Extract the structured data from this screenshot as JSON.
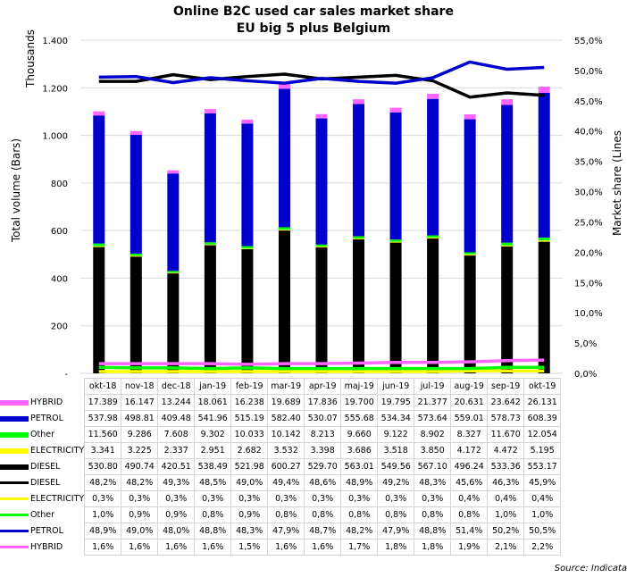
{
  "chart_data": {
    "type": "bar",
    "title": "Online B2C used car sales market share",
    "subtitle": "EU big 5 plus Belgium",
    "categories": [
      "okt-18",
      "nov-18",
      "dec-18",
      "jan-19",
      "feb-19",
      "mar-19",
      "apr-19",
      "maj-19",
      "jun-19",
      "jul-19",
      "aug-19",
      "sep-19",
      "okt-19"
    ],
    "left_axis": {
      "title": "Total volume (Bars)",
      "unit_label": "Thousands",
      "range": [
        0,
        1400
      ],
      "ticks": [
        0,
        200,
        400,
        600,
        800,
        1000,
        1200,
        1400
      ],
      "tick_labels": [
        "-",
        "200",
        "400",
        "600",
        "800",
        "1.000",
        "1.200",
        "1.400"
      ]
    },
    "right_axis": {
      "title": "Market share (Lines",
      "range": [
        0,
        55
      ],
      "ticks": [
        0,
        5,
        10,
        15,
        20,
        25,
        30,
        35,
        40,
        45,
        50,
        55
      ],
      "tick_labels": [
        "0,0%",
        "5,0%",
        "10,0%",
        "15,0%",
        "20,0%",
        "25,0%",
        "30,0%",
        "35,0%",
        "40,0%",
        "45,0%",
        "50,0%",
        "55,0%"
      ]
    },
    "grid": true,
    "bar_series": [
      {
        "name": "DIESEL",
        "color": "#000000",
        "labels": [
          "530.80",
          "490.74",
          "420.51",
          "538.49",
          "521.98",
          "600.27",
          "529.70",
          "563.01",
          "549.56",
          "567.10",
          "496.24",
          "533.36",
          "553.17"
        ],
        "values": [
          530.8,
          490.74,
          420.51,
          538.49,
          521.98,
          600.27,
          529.7,
          563.01,
          549.56,
          567.1,
          496.24,
          533.36,
          553.17
        ]
      },
      {
        "name": "ELECTRICITY",
        "color": "#ffff00",
        "labels": [
          "3.341",
          "3.225",
          "2.337",
          "2.951",
          "2.682",
          "3.532",
          "3.398",
          "3.686",
          "3.518",
          "3.850",
          "4.172",
          "4.472",
          "5.195"
        ],
        "values": [
          3.341,
          3.225,
          2.337,
          2.951,
          2.682,
          3.532,
          3.398,
          3.686,
          3.518,
          3.85,
          4.172,
          4.472,
          5.195
        ]
      },
      {
        "name": "Other",
        "color": "#00ff00",
        "labels": [
          "11.560",
          "9.286",
          "7.608",
          "9.302",
          "10.033",
          "10.142",
          "8.213",
          "9.660",
          "9.122",
          "8.902",
          "8.327",
          "11.670",
          "12.054"
        ],
        "values": [
          11.56,
          9.286,
          7.608,
          9.302,
          10.033,
          10.142,
          8.213,
          9.66,
          9.122,
          8.902,
          8.327,
          11.67,
          12.054
        ]
      },
      {
        "name": "PETROL",
        "color": "#0000cc",
        "labels": [
          "537.98",
          "498.81",
          "409.48",
          "541.96",
          "515.19",
          "582.40",
          "530.07",
          "555.68",
          "534.34",
          "573.64",
          "559.01",
          "578.73",
          "608.39"
        ],
        "values": [
          537.98,
          498.81,
          409.48,
          541.96,
          515.19,
          582.4,
          530.07,
          555.68,
          534.34,
          573.64,
          559.01,
          578.73,
          608.39
        ]
      },
      {
        "name": "HYBRID",
        "color": "#ff66ff",
        "labels": [
          "17.389",
          "16.147",
          "13.244",
          "18.061",
          "16.238",
          "19.689",
          "17.836",
          "19.700",
          "19.795",
          "21.377",
          "20.631",
          "23.642",
          "26.131"
        ],
        "values": [
          17.389,
          16.147,
          13.244,
          18.061,
          16.238,
          19.689,
          17.836,
          19.7,
          19.795,
          21.377,
          20.631,
          23.642,
          26.131
        ]
      }
    ],
    "line_series": [
      {
        "name": "DIESEL",
        "color": "#000000",
        "labels": [
          "48,2%",
          "48,2%",
          "49,3%",
          "48,5%",
          "49,0%",
          "49,4%",
          "48,6%",
          "48,9%",
          "49,2%",
          "48,3%",
          "45,6%",
          "46,3%",
          "45,9%"
        ],
        "values": [
          48.2,
          48.2,
          49.3,
          48.5,
          49.0,
          49.4,
          48.6,
          48.9,
          49.2,
          48.3,
          45.6,
          46.3,
          45.9
        ]
      },
      {
        "name": "ELECTRICITY",
        "color": "#ffff00",
        "labels": [
          "0,3%",
          "0,3%",
          "0,3%",
          "0,3%",
          "0,3%",
          "0,3%",
          "0,3%",
          "0,3%",
          "0,3%",
          "0,3%",
          "0,4%",
          "0,4%",
          "0,4%"
        ],
        "values": [
          0.3,
          0.3,
          0.3,
          0.3,
          0.3,
          0.3,
          0.3,
          0.3,
          0.3,
          0.3,
          0.4,
          0.4,
          0.4
        ]
      },
      {
        "name": "Other",
        "color": "#00ff00",
        "labels": [
          "1,0%",
          "0,9%",
          "0,9%",
          "0,8%",
          "0,9%",
          "0,8%",
          "0,8%",
          "0,8%",
          "0,8%",
          "0,8%",
          "0,8%",
          "1,0%",
          "1,0%"
        ],
        "values": [
          1.0,
          0.9,
          0.9,
          0.8,
          0.9,
          0.8,
          0.8,
          0.8,
          0.8,
          0.8,
          0.8,
          1.0,
          1.0
        ]
      },
      {
        "name": "PETROL",
        "color": "#0000cc",
        "labels": [
          "48,9%",
          "49,0%",
          "48,0%",
          "48,8%",
          "48,3%",
          "47,9%",
          "48,7%",
          "48,2%",
          "47,9%",
          "48,8%",
          "51,4%",
          "50,2%",
          "50,5%"
        ],
        "values": [
          48.9,
          49.0,
          48.0,
          48.8,
          48.3,
          47.9,
          48.7,
          48.2,
          47.9,
          48.8,
          51.4,
          50.2,
          50.5
        ]
      },
      {
        "name": "HYBRID",
        "color": "#ff66ff",
        "labels": [
          "1,6%",
          "1,6%",
          "1,6%",
          "1,6%",
          "1,5%",
          "1,6%",
          "1,6%",
          "1,7%",
          "1,8%",
          "1,8%",
          "1,9%",
          "2,1%",
          "2,2%"
        ],
        "values": [
          1.6,
          1.6,
          1.6,
          1.6,
          1.5,
          1.6,
          1.6,
          1.7,
          1.8,
          1.8,
          1.9,
          2.1,
          2.2
        ]
      }
    ],
    "table_row_order": {
      "bars": [
        "HYBRID",
        "PETROL",
        "Other",
        "ELECTRICITY",
        "DIESEL"
      ],
      "lines": [
        "DIESEL",
        "ELECTRICITY",
        "Other",
        "PETROL",
        "HYBRID"
      ]
    }
  },
  "source": "Source: Indicata"
}
